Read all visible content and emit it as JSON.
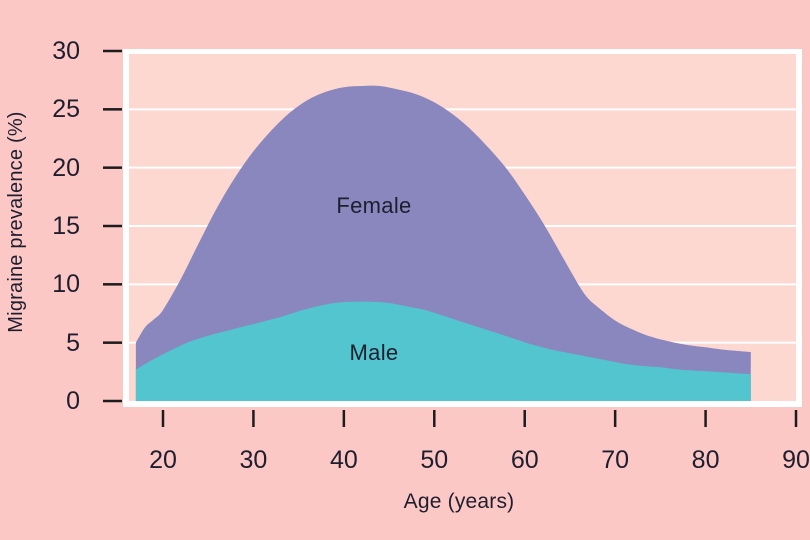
{
  "chart_data": {
    "type": "area",
    "title": "",
    "xlabel": "Age (years)",
    "ylabel": "Migraine prevalence (%)",
    "xlim": [
      16.2,
      90
    ],
    "ylim": [
      0,
      30
    ],
    "xticks": [
      20,
      30,
      40,
      50,
      60,
      70,
      80,
      90
    ],
    "yticks": [
      0,
      5,
      10,
      15,
      20,
      25,
      30
    ],
    "gridlines_y": [
      5,
      10,
      15,
      20,
      25
    ],
    "grid": "horizontal-white",
    "legend_position": "labels-inside-areas",
    "series": [
      {
        "name": "Female",
        "color": "#8a87be",
        "x": [
          17,
          18,
          19,
          20,
          22,
          24,
          26,
          28,
          30,
          32,
          34,
          36,
          38,
          40,
          42,
          44,
          46,
          48,
          50,
          52,
          54,
          56,
          58,
          60,
          62,
          64,
          66,
          67,
          68,
          70,
          72,
          74,
          76,
          78,
          80,
          82,
          85
        ],
        "values": [
          5.0,
          6.3,
          7.0,
          7.8,
          10.5,
          13.6,
          16.6,
          19.2,
          21.4,
          23.2,
          24.7,
          25.8,
          26.5,
          26.9,
          27.0,
          27.0,
          26.7,
          26.3,
          25.6,
          24.6,
          23.3,
          21.7,
          19.9,
          17.7,
          15.3,
          12.6,
          9.9,
          8.8,
          8.1,
          6.9,
          6.1,
          5.5,
          5.1,
          4.8,
          4.6,
          4.4,
          4.2
        ]
      },
      {
        "name": "Male",
        "color": "#52c5cf",
        "x": [
          17,
          19,
          21,
          23,
          25,
          27,
          29,
          31,
          33,
          35,
          37,
          39,
          41,
          43,
          45,
          47,
          49,
          51,
          53,
          55,
          57,
          59,
          61,
          63,
          65,
          67,
          69,
          71,
          73,
          75,
          77,
          79,
          81,
          83,
          85
        ],
        "values": [
          2.7,
          3.6,
          4.4,
          5.1,
          5.6,
          6.0,
          6.4,
          6.8,
          7.2,
          7.7,
          8.1,
          8.4,
          8.5,
          8.5,
          8.4,
          8.1,
          7.8,
          7.3,
          6.8,
          6.3,
          5.8,
          5.3,
          4.8,
          4.4,
          4.1,
          3.8,
          3.5,
          3.2,
          3.0,
          2.9,
          2.7,
          2.6,
          2.5,
          2.4,
          2.3
        ]
      }
    ],
    "peak_note": "Female peaks ~27% around age 42-44; Male peaks ~8.5% around age 41-43; data span ages 17-85"
  },
  "colors": {
    "background": "#fcc8c6",
    "plot_background": "#fcd8d1",
    "grid": "#ffffff",
    "axis_border": "#ffffff",
    "tick": "#1c1c1c",
    "text": "#1e1e2e"
  }
}
